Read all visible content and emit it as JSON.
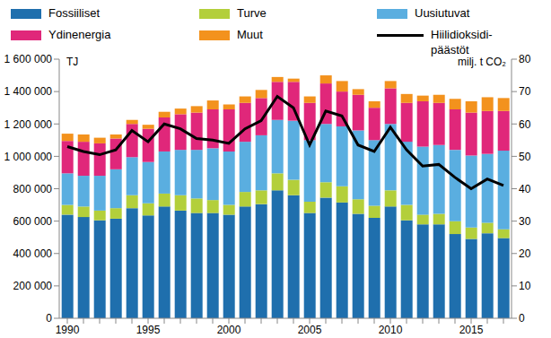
{
  "chart_data": {
    "type": "bar",
    "stacked": true,
    "grid": false,
    "legend": "top",
    "categories": [
      "1990",
      null,
      null,
      null,
      null,
      "1995",
      null,
      null,
      null,
      null,
      "2000",
      null,
      null,
      null,
      null,
      "2005",
      null,
      null,
      null,
      null,
      "2010",
      null,
      null,
      null,
      null,
      "2015",
      null,
      null
    ],
    "ylabel": "TJ",
    "y2label": "milj. t CO₂",
    "ylim": [
      0,
      1600000
    ],
    "yticks": [
      0,
      {
        "value": 200000,
        "label": "200 000"
      },
      {
        "value": 400000,
        "label": "400 000"
      },
      {
        "value": 600000,
        "label": "600 000"
      },
      {
        "value": 800000,
        "label": "800 000"
      },
      {
        "value": 1000000,
        "label": "1 000 000"
      },
      {
        "value": 1200000,
        "label": "1 200 000"
      },
      {
        "value": 1400000,
        "label": "1 400 000"
      },
      {
        "value": 1600000,
        "label": "1 600 000"
      }
    ],
    "y2lim": [
      0,
      80
    ],
    "y2ticks": [
      0,
      10,
      20,
      30,
      40,
      50,
      60,
      70,
      80
    ],
    "series": [
      {
        "name": "Fossiiliset",
        "color": "#1f6fad",
        "values": [
          640000,
          625000,
          605000,
          615000,
          680000,
          635000,
          690000,
          665000,
          650000,
          650000,
          640000,
          690000,
          705000,
          790000,
          760000,
          650000,
          745000,
          715000,
          645000,
          620000,
          690000,
          605000,
          580000,
          580000,
          520000,
          490000,
          525000,
          495000
        ]
      },
      {
        "name": "Turve",
        "color": "#b3cf3b",
        "values": [
          60000,
          65000,
          60000,
          65000,
          80000,
          75000,
          80000,
          95000,
          90000,
          80000,
          60000,
          90000,
          85000,
          105000,
          95000,
          70000,
          95000,
          100000,
          90000,
          75000,
          100000,
          95000,
          60000,
          65000,
          80000,
          70000,
          65000,
          55000
        ]
      },
      {
        "name": "Uusiutuvat",
        "color": "#5aaee0",
        "values": [
          195000,
          190000,
          215000,
          240000,
          235000,
          255000,
          260000,
          280000,
          300000,
          320000,
          330000,
          310000,
          340000,
          330000,
          365000,
          380000,
          360000,
          370000,
          425000,
          405000,
          410000,
          390000,
          420000,
          425000,
          440000,
          445000,
          425000,
          485000
        ]
      },
      {
        "name": "Ydinenergia",
        "color": "#e0277a",
        "values": [
          200000,
          210000,
          200000,
          190000,
          205000,
          205000,
          210000,
          220000,
          230000,
          240000,
          260000,
          240000,
          230000,
          235000,
          240000,
          230000,
          250000,
          215000,
          220000,
          200000,
          220000,
          240000,
          280000,
          260000,
          250000,
          265000,
          265000,
          245000
        ]
      },
      {
        "name": "Muut",
        "color": "#f3921d",
        "values": [
          45000,
          45000,
          35000,
          25000,
          25000,
          25000,
          35000,
          35000,
          40000,
          55000,
          30000,
          40000,
          50000,
          30000,
          20000,
          40000,
          50000,
          65000,
          35000,
          40000,
          45000,
          55000,
          35000,
          50000,
          65000,
          70000,
          85000,
          80000
        ]
      },
      {
        "name": "Hiilidioksidi-päästöt",
        "type": "line",
        "axis": "y2",
        "color": "#000000",
        "values": [
          53,
          51.5,
          50.5,
          52,
          58,
          54.5,
          60,
          58.5,
          55.5,
          55,
          54,
          58.5,
          61,
          68.5,
          65,
          53.5,
          64,
          62.5,
          53.5,
          51.5,
          59,
          52,
          47,
          47.5,
          43.5,
          40,
          43,
          41
        ]
      }
    ]
  }
}
